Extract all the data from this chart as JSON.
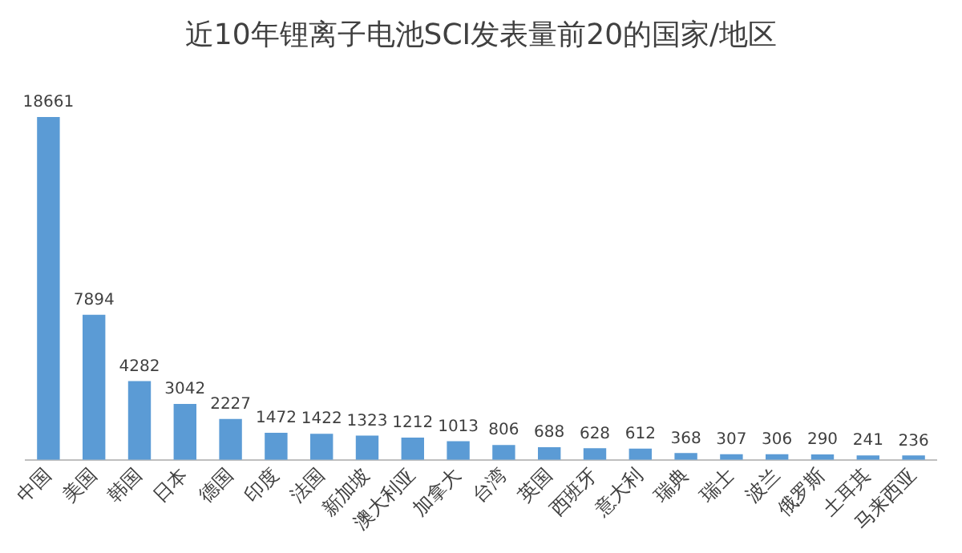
{
  "chart_data": {
    "type": "bar",
    "title": "近10年锂离子电池SCI发表量前20的国家/地区",
    "categories": [
      "中国",
      "美国",
      "韩国",
      "日本",
      "德国",
      "印度",
      "法国",
      "新加坡",
      "澳大利亚",
      "加拿大",
      "台湾",
      "英国",
      "西班牙",
      "意大利",
      "瑞典",
      "瑞士",
      "波兰",
      "俄罗斯",
      "土耳其",
      "马来西亚"
    ],
    "values": [
      18661,
      7894,
      4282,
      3042,
      2227,
      1472,
      1422,
      1323,
      1212,
      1013,
      806,
      688,
      628,
      612,
      368,
      307,
      306,
      290,
      241,
      236
    ],
    "color": "#5b9bd5",
    "data_labels": true,
    "grid": false,
    "legend": false,
    "tick_labels": "x"
  }
}
